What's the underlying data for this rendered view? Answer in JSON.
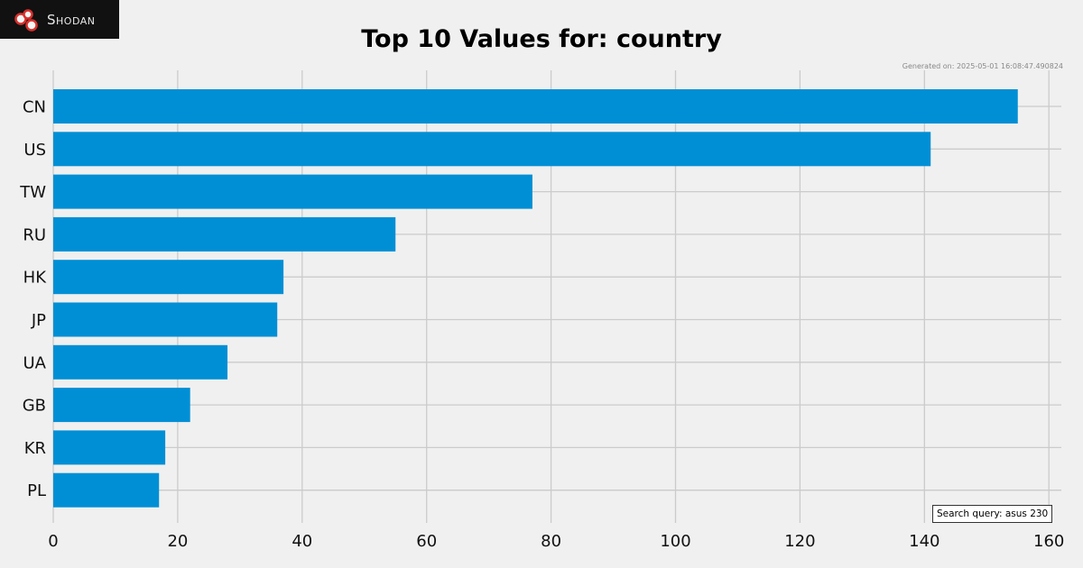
{
  "logo": {
    "text": "Shodan",
    "icon": "shodan-logo-icon"
  },
  "generated": "Generated on: 2025-05-01 16:08:47.490824",
  "search_query": "Search query: asus 230",
  "colors": {
    "bar": "#008fd5",
    "grid": "#cbcbcb",
    "background": "#f0f0f0"
  },
  "chart_data": {
    "type": "bar",
    "orientation": "horizontal",
    "title": "Top 10 Values for: country",
    "categories": [
      "CN",
      "US",
      "TW",
      "RU",
      "HK",
      "JP",
      "UA",
      "GB",
      "KR",
      "PL"
    ],
    "values": [
      155,
      141,
      77,
      55,
      37,
      36,
      28,
      22,
      18,
      17
    ],
    "xlim": [
      0,
      162
    ],
    "xticks": [
      0,
      20,
      40,
      60,
      80,
      100,
      120,
      140,
      160
    ],
    "grid": true
  }
}
